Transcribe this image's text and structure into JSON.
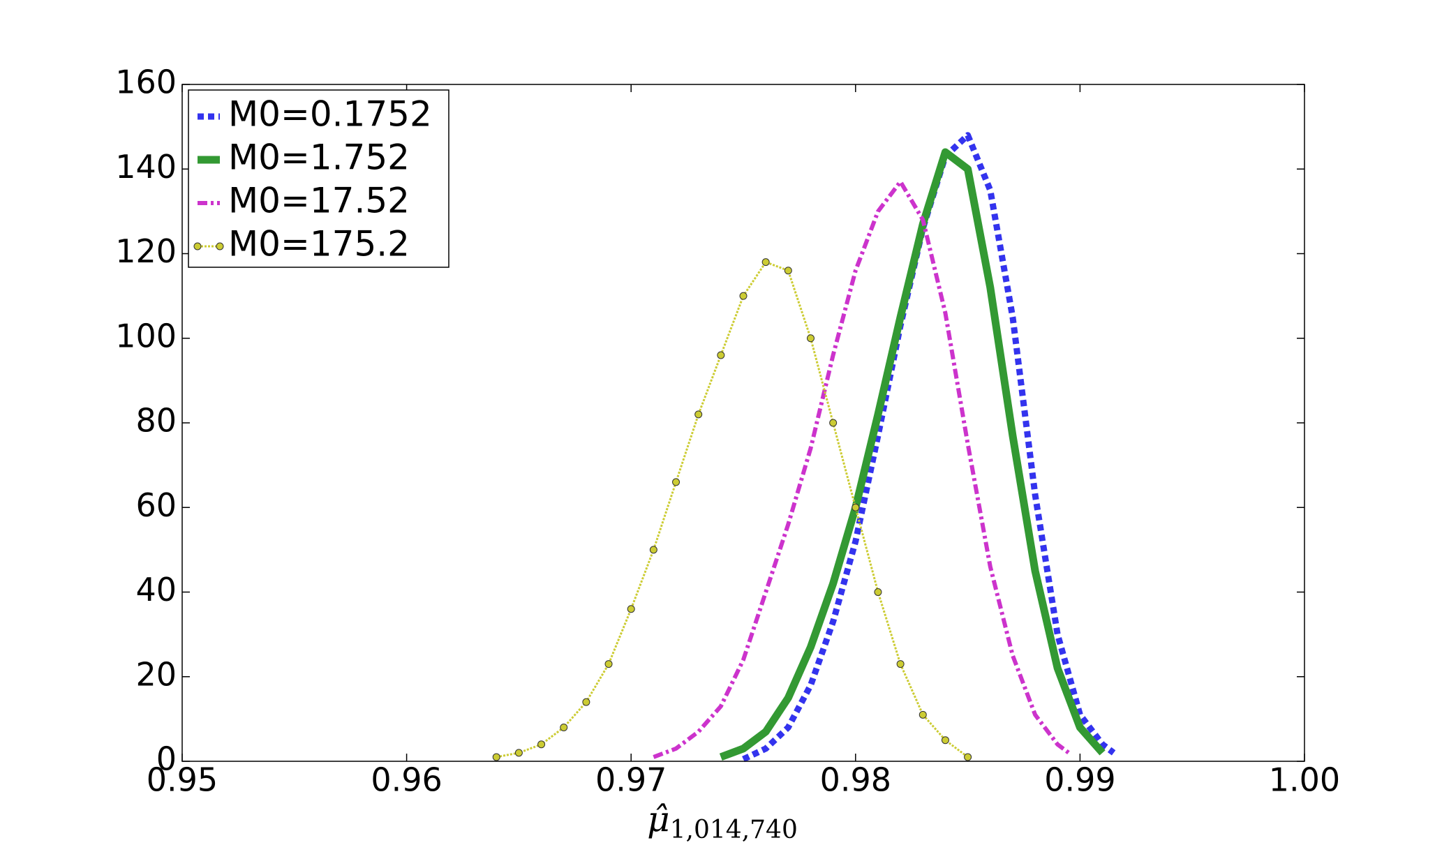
{
  "chart_data": {
    "type": "line",
    "xlabel": "μ̂",
    "xlabel_subscript": "1,014,740",
    "xlim": [
      0.95,
      1.0
    ],
    "ylim": [
      0,
      160
    ],
    "xticks": [
      0.95,
      0.96,
      0.97,
      0.98,
      0.99,
      {
        "value": 1.0,
        "label": "1.00"
      }
    ],
    "yticks": [
      0,
      20,
      40,
      60,
      80,
      100,
      120,
      140,
      160
    ],
    "grid": false,
    "legend": "upper left",
    "series": [
      {
        "name": "M0=0.1752",
        "color": "#3333ee",
        "linestyle": "dotted",
        "marker": null,
        "x": [
          0.975,
          0.976,
          0.977,
          0.978,
          0.979,
          0.98,
          0.981,
          0.982,
          0.983,
          0.984,
          0.985,
          0.986,
          0.987,
          0.988,
          0.989,
          0.99,
          0.991,
          0.9915
        ],
        "values": [
          0.5,
          3,
          8,
          18,
          33,
          52,
          77,
          103,
          126,
          143,
          148,
          135,
          105,
          63,
          30,
          11,
          4,
          2
        ]
      },
      {
        "name": "M0=1.752",
        "color": "#339933",
        "linestyle": "solid",
        "marker": null,
        "x": [
          0.974,
          0.975,
          0.976,
          0.977,
          0.978,
          0.979,
          0.98,
          0.981,
          0.982,
          0.983,
          0.984,
          0.985,
          0.986,
          0.987,
          0.988,
          0.989,
          0.99,
          0.991
        ],
        "values": [
          1,
          3,
          7,
          15,
          27,
          42,
          60,
          82,
          105,
          127,
          144,
          140,
          112,
          77,
          45,
          22,
          8,
          2
        ]
      },
      {
        "name": "M0=17.52",
        "color": "#cc33cc",
        "linestyle": "dashdot",
        "marker": null,
        "x": [
          0.971,
          0.972,
          0.973,
          0.974,
          0.975,
          0.976,
          0.977,
          0.978,
          0.979,
          0.98,
          0.981,
          0.982,
          0.983,
          0.984,
          0.985,
          0.986,
          0.987,
          0.988,
          0.989,
          0.9895
        ],
        "values": [
          1,
          3,
          7,
          13,
          24,
          40,
          56,
          74,
          96,
          116,
          130,
          137,
          128,
          106,
          75,
          46,
          25,
          11,
          4,
          2
        ]
      },
      {
        "name": "M0=175.2",
        "color": "#cccc33",
        "linestyle": "dotted",
        "marker": "circle",
        "x": [
          0.964,
          0.965,
          0.966,
          0.967,
          0.968,
          0.969,
          0.97,
          0.971,
          0.972,
          0.973,
          0.974,
          0.975,
          0.976,
          0.977,
          0.978,
          0.979,
          0.98,
          0.981,
          0.982,
          0.983,
          0.984,
          0.985
        ],
        "values": [
          1,
          2,
          4,
          8,
          14,
          23,
          36,
          50,
          66,
          82,
          96,
          110,
          118,
          116,
          100,
          80,
          60,
          40,
          23,
          11,
          5,
          1
        ]
      }
    ]
  }
}
